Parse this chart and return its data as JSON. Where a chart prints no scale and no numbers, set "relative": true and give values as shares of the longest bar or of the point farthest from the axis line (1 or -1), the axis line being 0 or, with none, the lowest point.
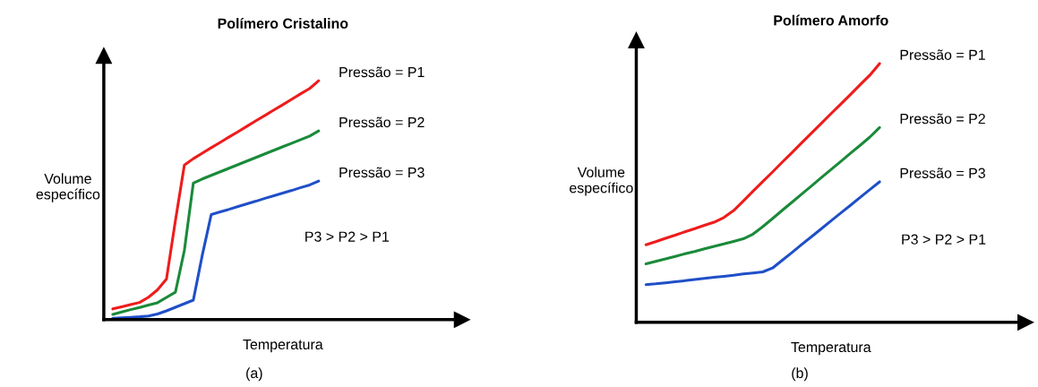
{
  "chart_data": [
    {
      "type": "line",
      "title": "Polímero Cristalino",
      "xlabel": "Temperatura",
      "ylabel": "Volume\nespecífico",
      "relative": true,
      "marker": "none",
      "line_style": "solid",
      "categories": [
        null,
        null,
        null,
        null,
        null,
        null,
        null,
        null,
        null,
        null,
        null,
        null,
        null,
        null,
        null,
        null,
        null,
        null,
        null,
        null,
        null,
        null,
        null,
        null,
        null,
        null,
        null,
        null,
        null,
        null,
        null,
        null,
        null,
        null,
        null,
        null,
        null,
        null,
        null,
        null
      ],
      "annotations": [
        "P3 > P2 > P1",
        "(a)"
      ],
      "series": [
        {
          "name": "Pressão = P1",
          "color": "#ee1c1c",
          "values": [
            null,
            0.045,
            0.054,
            0.063,
            0.072,
            0.094,
            0.125,
            0.17,
            0.415,
            0.647,
            0.674,
            0.697,
            0.72,
            0.742,
            0.765,
            0.787,
            0.81,
            0.833,
            0.855,
            0.878,
            0.9,
            0.923,
            0.946,
            0.968,
            1.0,
            null,
            null,
            null,
            null,
            null,
            null,
            null,
            null,
            null,
            null,
            null,
            null,
            null,
            null,
            null
          ]
        },
        {
          "name": "Pressão = P2",
          "color": "#1a8a3a",
          "values": [
            null,
            0.022,
            0.032,
            0.042,
            0.051,
            0.061,
            0.071,
            0.093,
            0.115,
            0.29,
            0.572,
            0.589,
            0.604,
            0.619,
            0.634,
            0.649,
            0.664,
            0.679,
            0.694,
            0.709,
            0.724,
            0.739,
            0.754,
            0.769,
            0.79,
            null,
            null,
            null,
            null,
            null,
            null,
            null,
            null,
            null,
            null,
            null,
            null,
            null,
            null,
            null
          ]
        },
        {
          "name": "Pressão = P3",
          "color": "#1f4fc8",
          "values": [
            null,
            0.006,
            0.008,
            0.01,
            0.012,
            0.015,
            0.024,
            0.037,
            0.052,
            0.067,
            0.082,
            0.27,
            0.44,
            0.451,
            0.462,
            0.474,
            0.485,
            0.496,
            0.508,
            0.519,
            0.53,
            0.541,
            0.553,
            0.564,
            0.58,
            null,
            null,
            null,
            null,
            null,
            null,
            null,
            null,
            null,
            null,
            null,
            null,
            null,
            null,
            null
          ]
        }
      ]
    },
    {
      "type": "line",
      "title": "Polímero Amorfo",
      "xlabel": "Temperatura",
      "ylabel": "Volume\nespecífico",
      "relative": true,
      "marker": "none",
      "line_style": "solid",
      "categories": [
        null,
        null,
        null,
        null,
        null,
        null,
        null,
        null,
        null,
        null,
        null,
        null,
        null,
        null,
        null,
        null,
        null,
        null,
        null,
        null,
        null,
        null,
        null,
        null,
        null,
        null,
        null,
        null,
        null,
        null,
        null,
        null,
        null,
        null,
        null,
        null,
        null,
        null,
        null,
        null
      ],
      "annotations": [
        "P3 > P2 > P1",
        "(b)"
      ],
      "series": [
        {
          "name": "Pressão = P1",
          "color": "#ee1c1c",
          "values": [
            null,
            0.3,
            0.312,
            0.325,
            0.337,
            0.35,
            0.362,
            0.375,
            0.387,
            0.405,
            0.432,
            0.469,
            0.507,
            0.544,
            0.581,
            0.619,
            0.656,
            0.694,
            0.731,
            0.768,
            0.806,
            0.843,
            0.88,
            0.918,
            0.955,
            1.0,
            null,
            null,
            null,
            null,
            null,
            null,
            null,
            null,
            null,
            null,
            null,
            null,
            null,
            null
          ]
        },
        {
          "name": "Pressão = P2",
          "color": "#1a8a3a",
          "values": [
            null,
            0.226,
            0.236,
            0.245,
            0.255,
            0.265,
            0.274,
            0.284,
            0.294,
            0.303,
            0.313,
            0.323,
            0.341,
            0.37,
            0.401,
            0.433,
            0.464,
            0.496,
            0.527,
            0.559,
            0.59,
            0.621,
            0.653,
            0.684,
            0.716,
            0.753,
            null,
            null,
            null,
            null,
            null,
            null,
            null,
            null,
            null,
            null,
            null,
            null,
            null,
            null
          ]
        },
        {
          "name": "Pressão = P3",
          "color": "#1f4fc8",
          "values": [
            null,
            0.146,
            0.149,
            0.153,
            0.157,
            0.161,
            0.166,
            0.17,
            0.174,
            0.178,
            0.182,
            0.187,
            0.191,
            0.195,
            0.21,
            0.24,
            0.27,
            0.301,
            0.331,
            0.361,
            0.392,
            0.422,
            0.452,
            0.483,
            0.513,
            0.543,
            null,
            null,
            null,
            null,
            null,
            null,
            null,
            null,
            null,
            null,
            null,
            null,
            null,
            null
          ]
        }
      ]
    }
  ]
}
